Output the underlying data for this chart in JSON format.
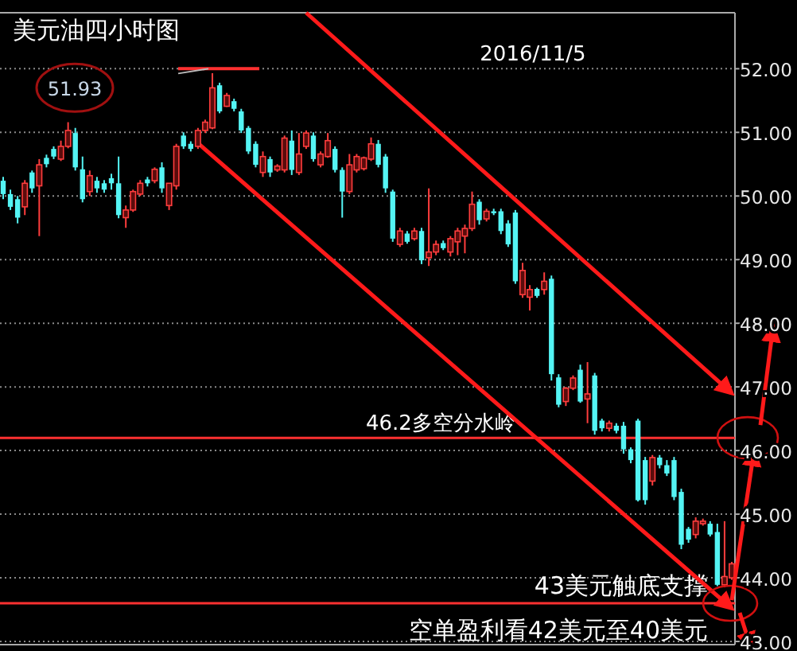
{
  "chart_data": {
    "type": "candlestick",
    "title": "美元油四小时图",
    "annotations": [
      "2016/11/5",
      "51.93",
      "空单盈利看42美元至40美元"
    ],
    "categories": [
      null,
      null,
      null,
      null,
      null,
      null,
      null,
      null,
      null,
      null,
      null,
      null,
      null,
      null,
      null,
      null,
      null,
      null,
      null,
      null,
      null,
      null,
      null,
      null,
      null,
      null,
      null,
      null,
      null,
      null,
      null,
      null,
      null,
      null,
      null,
      null,
      null,
      null,
      null,
      null,
      null,
      null,
      null,
      null,
      null,
      null,
      null,
      null,
      null,
      null,
      null,
      null,
      null,
      null,
      null,
      null,
      null,
      null,
      null,
      null,
      null,
      null,
      null,
      null,
      null,
      null,
      null,
      null,
      null,
      null,
      null,
      null,
      null,
      null,
      null,
      null,
      null,
      null,
      null,
      null,
      null,
      null,
      null,
      null,
      null,
      null,
      null,
      null,
      null,
      null,
      null,
      null,
      null,
      null,
      null,
      null,
      null,
      null,
      null,
      null,
      null,
      null
    ],
    "ohlc": [
      [
        50.24,
        50.3,
        49.95,
        50.03
      ],
      [
        50.03,
        50.1,
        49.78,
        49.83
      ],
      [
        49.95,
        50.0,
        49.57,
        49.66
      ],
      [
        49.83,
        50.25,
        49.7,
        50.2
      ],
      [
        50.37,
        50.4,
        50.05,
        50.12
      ],
      [
        50.16,
        50.58,
        49.37,
        50.49
      ],
      [
        50.6,
        50.65,
        50.45,
        50.5
      ],
      [
        50.74,
        50.78,
        50.58,
        50.62
      ],
      [
        50.58,
        50.87,
        50.55,
        50.78
      ],
      [
        50.78,
        51.16,
        50.75,
        51.03
      ],
      [
        50.99,
        51.07,
        50.4,
        50.45
      ],
      [
        50.42,
        50.62,
        49.9,
        49.95
      ],
      [
        50.07,
        50.4,
        50.0,
        50.32
      ],
      [
        50.24,
        50.3,
        50.05,
        50.12
      ],
      [
        50.2,
        50.25,
        50.05,
        50.1
      ],
      [
        50.28,
        50.35,
        50.1,
        50.2
      ],
      [
        50.2,
        50.62,
        49.65,
        49.7
      ],
      [
        49.66,
        49.85,
        49.5,
        49.78
      ],
      [
        49.78,
        50.1,
        49.75,
        50.07
      ],
      [
        50.03,
        50.25,
        50.0,
        50.2
      ],
      [
        50.26,
        50.3,
        50.15,
        50.2
      ],
      [
        50.24,
        50.45,
        50.2,
        50.42
      ],
      [
        50.45,
        50.53,
        50.05,
        50.12
      ],
      [
        49.85,
        50.2,
        49.78,
        50.2
      ],
      [
        50.16,
        50.82,
        50.1,
        50.78
      ],
      [
        50.95,
        51.0,
        50.74,
        50.78
      ],
      [
        50.82,
        50.86,
        50.7,
        50.74
      ],
      [
        50.78,
        51.07,
        50.74,
        51.03
      ],
      [
        51.03,
        51.2,
        50.99,
        51.16
      ],
      [
        51.07,
        51.93,
        51.05,
        51.7
      ],
      [
        51.74,
        51.78,
        51.3,
        51.33
      ],
      [
        51.41,
        51.62,
        51.4,
        51.58
      ],
      [
        51.49,
        51.53,
        51.33,
        51.37
      ],
      [
        51.33,
        51.37,
        50.99,
        51.03
      ],
      [
        51.07,
        51.1,
        50.66,
        50.7
      ],
      [
        50.82,
        50.86,
        50.45,
        50.49
      ],
      [
        50.37,
        50.7,
        50.3,
        50.62
      ],
      [
        50.58,
        50.62,
        50.3,
        50.37
      ],
      [
        50.41,
        50.5,
        50.38,
        50.47
      ],
      [
        50.41,
        50.95,
        50.37,
        50.91
      ],
      [
        50.87,
        51.03,
        50.33,
        50.41
      ],
      [
        50.37,
        50.99,
        50.33,
        50.66
      ],
      [
        50.78,
        51.03,
        50.74,
        50.99
      ],
      [
        50.95,
        51.0,
        50.54,
        50.58
      ],
      [
        50.49,
        50.7,
        50.45,
        50.66
      ],
      [
        50.62,
        50.99,
        50.6,
        50.87
      ],
      [
        50.74,
        50.78,
        50.37,
        50.41
      ],
      [
        50.41,
        50.45,
        49.66,
        50.07
      ],
      [
        50.07,
        50.66,
        50.03,
        50.49
      ],
      [
        50.41,
        50.66,
        50.37,
        50.62
      ],
      [
        50.43,
        50.62,
        50.4,
        50.6
      ],
      [
        50.58,
        50.92,
        50.55,
        50.82
      ],
      [
        50.82,
        50.88,
        50.45,
        50.49
      ],
      [
        50.62,
        50.66,
        50.05,
        50.12
      ],
      [
        50.07,
        50.1,
        49.28,
        49.33
      ],
      [
        49.24,
        49.5,
        49.2,
        49.45
      ],
      [
        49.41,
        49.45,
        49.25,
        49.28
      ],
      [
        49.33,
        49.5,
        49.3,
        49.45
      ],
      [
        49.45,
        49.5,
        48.93,
        48.99
      ],
      [
        49.03,
        50.12,
        48.9,
        49.12
      ],
      [
        49.12,
        49.3,
        49.07,
        49.24
      ],
      [
        49.26,
        49.3,
        49.15,
        49.18
      ],
      [
        49.12,
        49.37,
        49.05,
        49.33
      ],
      [
        49.28,
        49.5,
        49.07,
        49.45
      ],
      [
        49.37,
        49.55,
        49.1,
        49.49
      ],
      [
        49.49,
        50.07,
        49.45,
        49.87
      ],
      [
        49.91,
        49.95,
        49.55,
        49.62
      ],
      [
        49.64,
        49.8,
        49.6,
        49.76
      ],
      [
        49.76,
        49.8,
        49.7,
        49.73
      ],
      [
        49.76,
        49.8,
        49.4,
        49.45
      ],
      [
        49.57,
        49.62,
        49.2,
        49.24
      ],
      [
        49.74,
        49.78,
        48.62,
        48.66
      ],
      [
        48.45,
        48.95,
        48.4,
        48.83
      ],
      [
        48.41,
        48.6,
        48.2,
        48.53
      ],
      [
        48.54,
        48.56,
        48.4,
        48.43
      ],
      [
        48.53,
        48.8,
        48.45,
        48.66
      ],
      [
        48.7,
        48.75,
        47.1,
        47.2
      ],
      [
        47.15,
        47.2,
        46.68,
        46.72
      ],
      [
        46.77,
        47.0,
        46.7,
        46.98
      ],
      [
        46.98,
        47.18,
        46.95,
        47.14
      ],
      [
        47.27,
        47.35,
        46.75,
        46.77
      ],
      [
        46.81,
        47.39,
        46.43,
        46.89
      ],
      [
        47.18,
        47.22,
        46.25,
        46.31
      ],
      [
        46.47,
        46.5,
        46.3,
        46.35
      ],
      [
        46.35,
        46.47,
        46.3,
        46.43
      ],
      [
        46.39,
        46.43,
        46.27,
        46.31
      ],
      [
        46.39,
        46.45,
        45.95,
        46.02
      ],
      [
        46.02,
        46.05,
        45.8,
        45.85
      ],
      [
        46.47,
        46.5,
        45.2,
        45.22
      ],
      [
        45.85,
        45.9,
        45.15,
        45.22
      ],
      [
        45.52,
        45.93,
        45.45,
        45.89
      ],
      [
        45.89,
        45.93,
        45.72,
        45.77
      ],
      [
        45.77,
        45.85,
        45.6,
        45.64
      ],
      [
        45.85,
        45.9,
        45.22,
        45.27
      ],
      [
        45.35,
        45.4,
        44.45,
        44.52
      ],
      [
        44.77,
        44.8,
        44.55,
        44.6
      ],
      [
        44.68,
        44.95,
        44.62,
        44.89
      ],
      [
        44.85,
        44.93,
        44.82,
        44.89
      ],
      [
        44.85,
        44.89,
        44.65,
        44.68
      ],
      [
        44.72,
        44.85,
        43.87,
        43.89
      ],
      [
        43.89,
        44.89,
        43.85,
        44.02
      ],
      [
        44.0,
        44.25,
        43.97,
        44.22
      ]
    ],
    "series": [
      {
        "type": "line",
        "color": "#ff1a1a",
        "values": [
          null,
          null,
          null,
          null,
          null,
          null,
          null,
          null,
          null,
          null,
          null,
          null,
          null,
          null,
          null,
          null,
          null,
          null,
          null,
          null,
          null,
          null,
          null,
          null,
          null,
          null,
          null,
          50.83,
          null,
          null,
          null,
          null,
          null,
          null,
          null,
          null,
          null,
          null,
          null,
          null,
          null,
          null,
          null,
          null,
          null,
          null,
          null,
          null,
          null,
          null,
          null,
          null,
          null,
          null,
          null,
          null,
          null,
          null,
          null,
          null,
          null,
          null,
          null,
          null,
          null,
          null,
          null,
          null,
          null,
          null,
          null,
          null,
          null,
          null,
          null,
          null,
          null,
          null,
          null,
          null,
          null,
          null,
          null,
          null,
          null,
          null,
          null,
          null,
          null,
          null,
          null,
          null,
          null,
          null,
          null,
          null,
          null,
          null,
          null,
          null,
          null,
          43.52
        ]
      },
      {
        "type": "line",
        "color": "#ff1a1a",
        "values": [
          null,
          null,
          null,
          null,
          null,
          null,
          null,
          null,
          null,
          null,
          null,
          null,
          null,
          null,
          null,
          null,
          null,
          null,
          null,
          null,
          null,
          null,
          null,
          null,
          null,
          null,
          null,
          null,
          null,
          null,
          null,
          null,
          null,
          null,
          null,
          null,
          null,
          null,
          null,
          null,
          null,
          null,
          52.88,
          null,
          null,
          null,
          null,
          null,
          null,
          null,
          null,
          null,
          null,
          null,
          null,
          null,
          null,
          null,
          null,
          null,
          null,
          null,
          null,
          null,
          null,
          null,
          null,
          null,
          null,
          null,
          null,
          null,
          null,
          null,
          null,
          null,
          null,
          null,
          null,
          null,
          null,
          null,
          null,
          null,
          null,
          null,
          null,
          null,
          null,
          null,
          null,
          null,
          null,
          null,
          null,
          null,
          null,
          null,
          null,
          null,
          null,
          46.9
        ]
      }
    ],
    "ylim": [
      42.95,
      52.88
    ],
    "yticks": [
      {
        "value": 43,
        "label": "43.00"
      },
      {
        "value": 44,
        "label": "44.00"
      },
      {
        "value": 45,
        "label": "45.00"
      },
      {
        "value": 46,
        "label": "46.00"
      },
      {
        "value": 47,
        "label": "47.00"
      },
      {
        "value": 48,
        "label": "48.00"
      },
      {
        "value": 49,
        "label": "49.00"
      },
      {
        "value": 50,
        "label": "50.00"
      },
      {
        "value": 51,
        "label": "51.00"
      },
      {
        "value": 52,
        "label": "52.00"
      }
    ],
    "ref_lines": [
      {
        "axis": "y",
        "value": 46.2,
        "label": "46.2多空分水岭",
        "color": "#ff3030"
      },
      {
        "axis": "y",
        "value": 43.6,
        "label": "43美元触底支撑",
        "color": "#ff3030"
      }
    ],
    "grid": "y",
    "tick_labels": "y"
  }
}
